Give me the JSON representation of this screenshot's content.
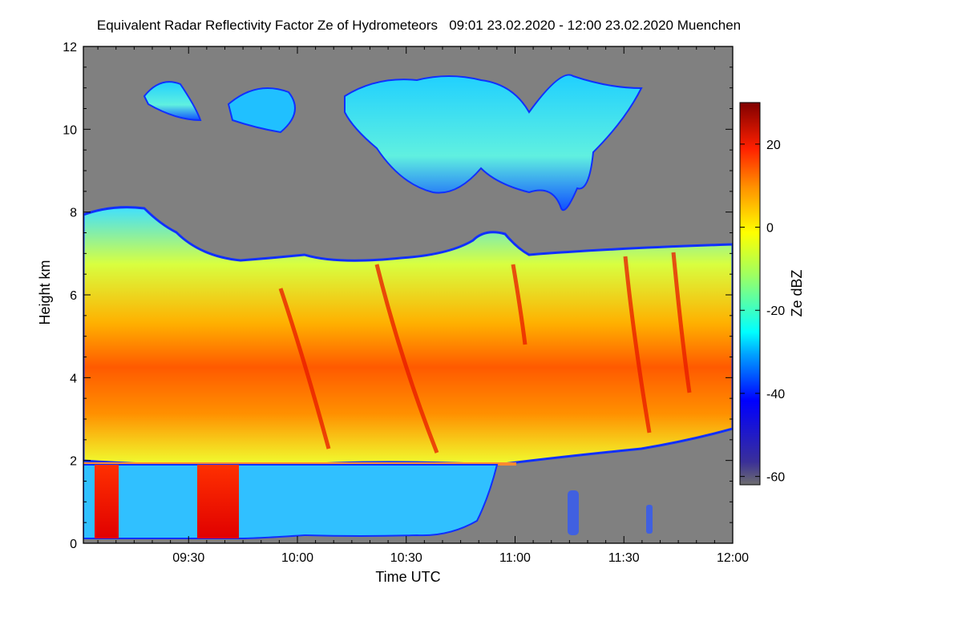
{
  "title": "Equivalent Radar Reflectivity Factor Ze of Hydrometeors   09:01 23.02.2020 - 12:00 23.02.2020 Muenchen",
  "chart_data": {
    "type": "heatmap",
    "title": "Equivalent Radar Reflectivity Factor Ze of Hydrometeors   09:01 23.02.2020 - 12:00 23.02.2020 Muenchen",
    "xlabel": "Time UTC",
    "ylabel": "Height km",
    "x_range_min": [
      541,
      720
    ],
    "x_ticks": [
      {
        "value": 570,
        "label": "09:30"
      },
      {
        "value": 600,
        "label": "10:00"
      },
      {
        "value": 630,
        "label": "10:30"
      },
      {
        "value": 660,
        "label": "11:00"
      },
      {
        "value": 690,
        "label": "11:30"
      },
      {
        "value": 720,
        "label": "12:00"
      }
    ],
    "ylim": [
      0,
      12
    ],
    "y_ticks": [
      0,
      2,
      4,
      6,
      8,
      10,
      12
    ],
    "colorbar": {
      "label": "Ze dBZ",
      "range": [
        -62,
        30
      ],
      "ticks": [
        20,
        0,
        -20,
        -40,
        -60
      ]
    },
    "features": {
      "main_cloud_top_km": 7.0,
      "cirrus_layer_km": [
        8.3,
        11.4
      ],
      "melting_layer_km": 1.85,
      "high_reflectivity_band_km": [
        2.5,
        4.5
      ],
      "rain_shafts_min": [
        [
          545,
          550
        ],
        [
          571,
          579
        ]
      ]
    },
    "colors": {
      "no_signal": "#808080",
      "background": "#ffffff"
    }
  }
}
